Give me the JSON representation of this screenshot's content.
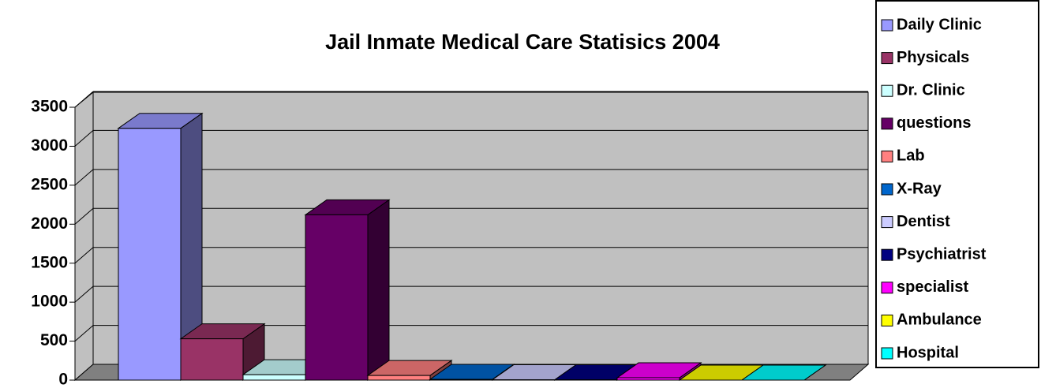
{
  "chart_data": {
    "type": "bar",
    "title": "Jail Inmate Medical Care Statisics 2004",
    "series": [
      {
        "name": "Daily Clinic",
        "color": "#9999ff",
        "values": [
          3230
        ]
      },
      {
        "name": "Physicals",
        "color": "#993366",
        "values": [
          530
        ]
      },
      {
        "name": "Dr. Clinic",
        "color": "#ccffff",
        "values": [
          70
        ]
      },
      {
        "name": "questions",
        "color": "#660066",
        "values": [
          2120
        ]
      },
      {
        "name": "Lab",
        "color": "#ff8080",
        "values": [
          60
        ]
      },
      {
        "name": "X-Ray",
        "color": "#0066cc",
        "values": [
          10
        ]
      },
      {
        "name": "Dentist",
        "color": "#ccccff",
        "values": [
          5
        ]
      },
      {
        "name": "Psychiatrist",
        "color": "#000080",
        "values": [
          5
        ]
      },
      {
        "name": "specialist",
        "color": "#ff00ff",
        "values": [
          30
        ]
      },
      {
        "name": "Ambulance",
        "color": "#ffff00",
        "values": [
          0
        ]
      },
      {
        "name": "Hospital",
        "color": "#00ffff",
        "values": [
          0
        ]
      }
    ],
    "ylim": [
      0,
      3500
    ],
    "yticks": [
      0,
      500,
      1000,
      1500,
      2000,
      2500,
      3000,
      3500
    ],
    "grid": true,
    "legend": "right"
  }
}
